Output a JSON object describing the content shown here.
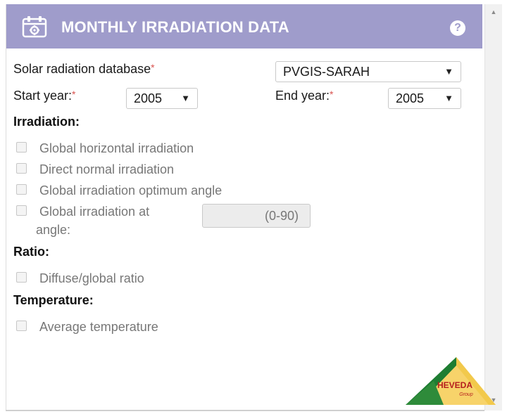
{
  "header": {
    "title": "MONTHLY IRRADIATION DATA",
    "help_glyph": "?",
    "icon": "calendar-gear-icon",
    "bg_color": "#9f9ccb"
  },
  "form": {
    "database_label": "Solar radiation database",
    "database_value": "PVGIS-SARAH",
    "start_year_label": "Start year:",
    "start_year_value": "2005",
    "end_year_label": "End year:",
    "end_year_value": "2005",
    "required_mark": "*",
    "dropdown_arrow": "▼"
  },
  "irradiation": {
    "heading": "Irradiation:",
    "items": [
      "Global horizontal irradiation",
      "Direct normal irradiation",
      "Global irradiation optimum angle"
    ],
    "angle_label_line1": "Global irradiation at",
    "angle_label_line2": "angle:",
    "angle_placeholder": "(0-90)"
  },
  "ratio": {
    "heading": "Ratio:",
    "item": "Diffuse/global ratio"
  },
  "temperature": {
    "heading": "Temperature:",
    "item": "Average temperature"
  },
  "scrollbar": {
    "up_glyph": "▲",
    "down_glyph": "▼"
  },
  "logo": {
    "text": "HEVEDA",
    "subtext": "Group"
  }
}
